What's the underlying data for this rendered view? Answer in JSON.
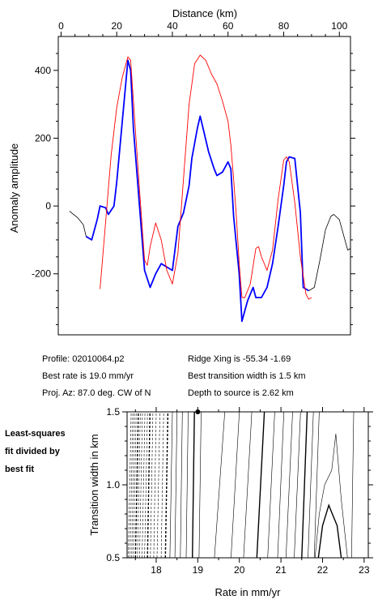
{
  "chart_data": [
    {
      "type": "line",
      "xlabel": "Distance (km)",
      "ylabel": "Anomaly amplitude",
      "xlim": [
        -1,
        104
      ],
      "ylim": [
        -380,
        500
      ],
      "xticks": [
        0,
        20,
        40,
        60,
        80,
        100
      ],
      "yticks": [
        -200,
        0,
        200,
        400
      ],
      "series": [
        {
          "color": "#000000",
          "points": [
            [
              3,
              -15
            ],
            [
              6,
              -35
            ],
            [
              8,
              -55
            ],
            [
              9,
              -90
            ],
            [
              11,
              -100
            ],
            [
              13,
              -40
            ],
            [
              14,
              0
            ],
            [
              16,
              -5
            ],
            [
              17,
              -25
            ],
            [
              19,
              0
            ],
            [
              20,
              70
            ],
            [
              22,
              250
            ],
            [
              24,
              430
            ],
            [
              25,
              400
            ],
            [
              26,
              230
            ],
            [
              28,
              20
            ],
            [
              30,
              -190
            ],
            [
              32,
              -240
            ],
            [
              34,
              -200
            ],
            [
              36,
              -170
            ],
            [
              38,
              -180
            ],
            [
              40,
              -190
            ],
            [
              42,
              -60
            ],
            [
              44,
              -20
            ],
            [
              46,
              60
            ],
            [
              47,
              140
            ],
            [
              49,
              230
            ],
            [
              50,
              265
            ],
            [
              51,
              230
            ],
            [
              53,
              160
            ],
            [
              55,
              110
            ],
            [
              56,
              90
            ],
            [
              58,
              100
            ],
            [
              60,
              130
            ],
            [
              61,
              110
            ],
            [
              62,
              -30
            ],
            [
              64,
              -200
            ],
            [
              65,
              -340
            ],
            [
              67,
              -280
            ],
            [
              69,
              -240
            ],
            [
              70,
              -270
            ],
            [
              72,
              -270
            ],
            [
              74,
              -240
            ],
            [
              76,
              -170
            ],
            [
              78,
              -60
            ],
            [
              80,
              60
            ],
            [
              81,
              130
            ],
            [
              82,
              145
            ],
            [
              84,
              140
            ],
            [
              86,
              -20
            ],
            [
              87,
              -240
            ],
            [
              89,
              -250
            ],
            [
              91,
              -240
            ],
            [
              93,
              -160
            ],
            [
              95,
              -70
            ],
            [
              97,
              -30
            ],
            [
              98,
              -25
            ],
            [
              100,
              -40
            ],
            [
              102,
              -100
            ],
            [
              103,
              -130
            ],
            [
              104,
              -125
            ]
          ]
        },
        {
          "color": "#0000ff",
          "points": [
            [
              9,
              -90
            ],
            [
              11,
              -100
            ],
            [
              13,
              -40
            ],
            [
              14,
              0
            ],
            [
              16,
              -5
            ],
            [
              17,
              -25
            ],
            [
              19,
              0
            ],
            [
              20,
              70
            ],
            [
              22,
              250
            ],
            [
              24,
              430
            ],
            [
              25,
              400
            ],
            [
              26,
              230
            ],
            [
              28,
              20
            ],
            [
              30,
              -190
            ],
            [
              32,
              -240
            ],
            [
              34,
              -200
            ],
            [
              36,
              -170
            ],
            [
              38,
              -180
            ],
            [
              40,
              -190
            ],
            [
              42,
              -60
            ],
            [
              44,
              -20
            ],
            [
              46,
              60
            ],
            [
              47,
              140
            ],
            [
              49,
              230
            ],
            [
              50,
              265
            ],
            [
              51,
              230
            ],
            [
              53,
              160
            ],
            [
              55,
              110
            ],
            [
              56,
              90
            ],
            [
              58,
              100
            ],
            [
              60,
              130
            ],
            [
              61,
              110
            ],
            [
              62,
              -30
            ],
            [
              64,
              -200
            ],
            [
              65,
              -340
            ],
            [
              67,
              -280
            ],
            [
              69,
              -240
            ],
            [
              70,
              -270
            ],
            [
              72,
              -270
            ],
            [
              74,
              -240
            ],
            [
              76,
              -170
            ],
            [
              78,
              -60
            ],
            [
              80,
              60
            ],
            [
              81,
              130
            ],
            [
              82,
              145
            ],
            [
              84,
              140
            ],
            [
              86,
              -20
            ],
            [
              87,
              -240
            ],
            [
              89,
              -250
            ]
          ]
        },
        {
          "color": "#ff0000",
          "points": [
            [
              14,
              -245
            ],
            [
              16,
              -50
            ],
            [
              18,
              150
            ],
            [
              20,
              290
            ],
            [
              22,
              380
            ],
            [
              24,
              440
            ],
            [
              25,
              430
            ],
            [
              26,
              310
            ],
            [
              28,
              70
            ],
            [
              30,
              -160
            ],
            [
              31,
              -175
            ],
            [
              32,
              -120
            ],
            [
              34,
              -50
            ],
            [
              36,
              -100
            ],
            [
              38,
              -190
            ],
            [
              40,
              -230
            ],
            [
              42,
              -140
            ],
            [
              44,
              80
            ],
            [
              46,
              300
            ],
            [
              48,
              420
            ],
            [
              50,
              445
            ],
            [
              52,
              430
            ],
            [
              54,
              390
            ],
            [
              56,
              360
            ],
            [
              58,
              310
            ],
            [
              60,
              250
            ],
            [
              61,
              180
            ],
            [
              62,
              80
            ],
            [
              63,
              -30
            ],
            [
              64,
              -170
            ],
            [
              65,
              -270
            ],
            [
              66,
              -270
            ],
            [
              68,
              -230
            ],
            [
              70,
              -125
            ],
            [
              71,
              -120
            ],
            [
              72,
              -150
            ],
            [
              74,
              -190
            ],
            [
              76,
              -130
            ],
            [
              78,
              20
            ],
            [
              80,
              135
            ],
            [
              81,
              145
            ],
            [
              82,
              130
            ],
            [
              84,
              10
            ],
            [
              86,
              -150
            ],
            [
              88,
              -260
            ],
            [
              89,
              -275
            ],
            [
              90,
              -270
            ]
          ]
        }
      ]
    },
    {
      "type": "contour",
      "xlabel": "Rate in mm/yr",
      "ylabel": "Transition width in km",
      "xlim": [
        17.3,
        23.1
      ],
      "ylim": [
        0.5,
        1.5
      ],
      "xticks": [
        18,
        19,
        20,
        21,
        22,
        23
      ],
      "yticks": [
        0.5,
        1.0,
        1.5
      ],
      "best_fit": {
        "rate": 19.0,
        "width": 1.5
      },
      "contour_lines_bottom_x": [
        17.33,
        17.37,
        17.41,
        17.45,
        17.5,
        17.55,
        17.6,
        17.66,
        17.72,
        17.79,
        17.86,
        17.94,
        18.02,
        18.12,
        18.22,
        18.33,
        18.45,
        18.58,
        18.72,
        18.87,
        19.03,
        19.4,
        19.8,
        20.1,
        20.42,
        20.68,
        20.92,
        21.12,
        21.32,
        21.5,
        21.65,
        21.8
      ],
      "contour_lines_top_x": [
        17.4,
        17.44,
        17.48,
        17.52,
        17.57,
        17.62,
        17.67,
        17.73,
        17.79,
        17.85,
        17.92,
        18.0,
        18.09,
        18.18,
        18.28,
        18.39,
        18.5,
        18.63,
        18.77,
        18.92,
        19.08,
        19.65,
        20.0,
        20.3,
        20.6,
        20.85,
        21.07,
        21.28,
        21.47,
        21.63,
        21.78,
        21.92
      ]
    }
  ],
  "info": {
    "profile": "Profile: 02010064.p2",
    "ridge": "Ridge Xing is -55.34  -1.69",
    "best_rate": "Best rate is 19.0 mm/yr",
    "best_width": "Best transition width is 1.5 km",
    "proj": "Proj. Az: 87.0 deg. CW of N",
    "depth": "Depth to source is    2.62 km"
  },
  "side_note": [
    "Least-squares",
    "fit divided by",
    "best fit"
  ]
}
